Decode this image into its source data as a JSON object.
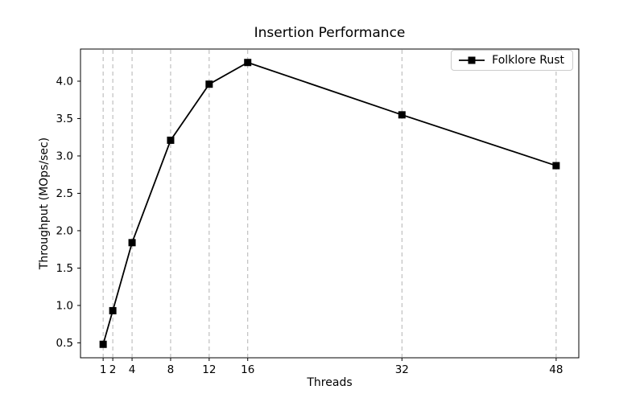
{
  "chart_data": {
    "type": "line",
    "title": "Insertion Performance",
    "xlabel": "Threads",
    "ylabel": "Throughput (MOps/sec)",
    "x": [
      1,
      2,
      4,
      8,
      12,
      16,
      32,
      48
    ],
    "series": [
      {
        "name": "Folklore Rust",
        "values": [
          0.48,
          0.93,
          1.84,
          3.21,
          3.96,
          4.25,
          3.55,
          2.87
        ],
        "color": "#000000",
        "marker": "square"
      }
    ],
    "x_ticks": [
      1,
      2,
      4,
      8,
      12,
      16,
      32,
      48
    ],
    "x_tick_labels": [
      "1",
      "2",
      "4",
      "8",
      "12",
      "16",
      "32",
      "48"
    ],
    "y_ticks": [
      0.5,
      1.0,
      1.5,
      2.0,
      2.5,
      3.0,
      3.5,
      4.0
    ],
    "y_tick_labels": [
      "0.5",
      "1.0",
      "1.5",
      "2.0",
      "2.5",
      "3.0",
      "3.5",
      "4.0"
    ],
    "xlim": [
      -1.35,
      50.35
    ],
    "ylim": [
      0.3,
      4.43
    ],
    "x_scale": "linear",
    "grid": "vertical-dashed",
    "grid_color": "#b3b3b3",
    "spine_color": "#000000",
    "background_color": "#ffffff",
    "legend_position": "upper right"
  }
}
